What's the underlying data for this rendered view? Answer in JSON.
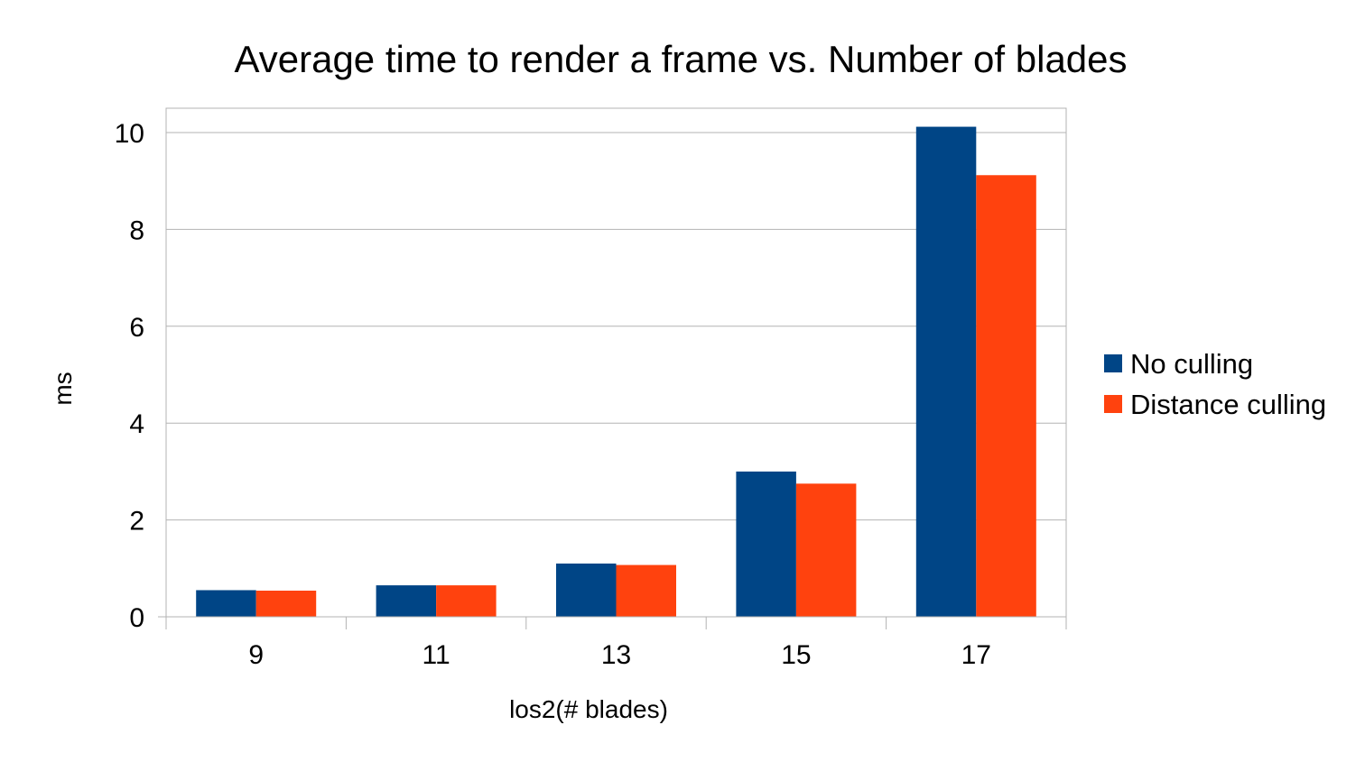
{
  "chart_data": {
    "type": "bar",
    "title": "Average time to render a frame vs. Number of blades",
    "xlabel": "los2(# blades)",
    "ylabel": "ms",
    "categories": [
      "9",
      "11",
      "13",
      "15",
      "17"
    ],
    "series": [
      {
        "name": "No culling",
        "color": "#004586",
        "values": [
          0.55,
          0.65,
          1.1,
          3.0,
          10.12
        ]
      },
      {
        "name": "Distance culling",
        "color": "#ff420e",
        "values": [
          0.54,
          0.65,
          1.07,
          2.75,
          9.12
        ]
      }
    ],
    "ylim": [
      0,
      10.5
    ],
    "yticks": [
      0,
      2,
      4,
      6,
      8,
      10
    ],
    "grid": true,
    "legend_position": "right"
  }
}
